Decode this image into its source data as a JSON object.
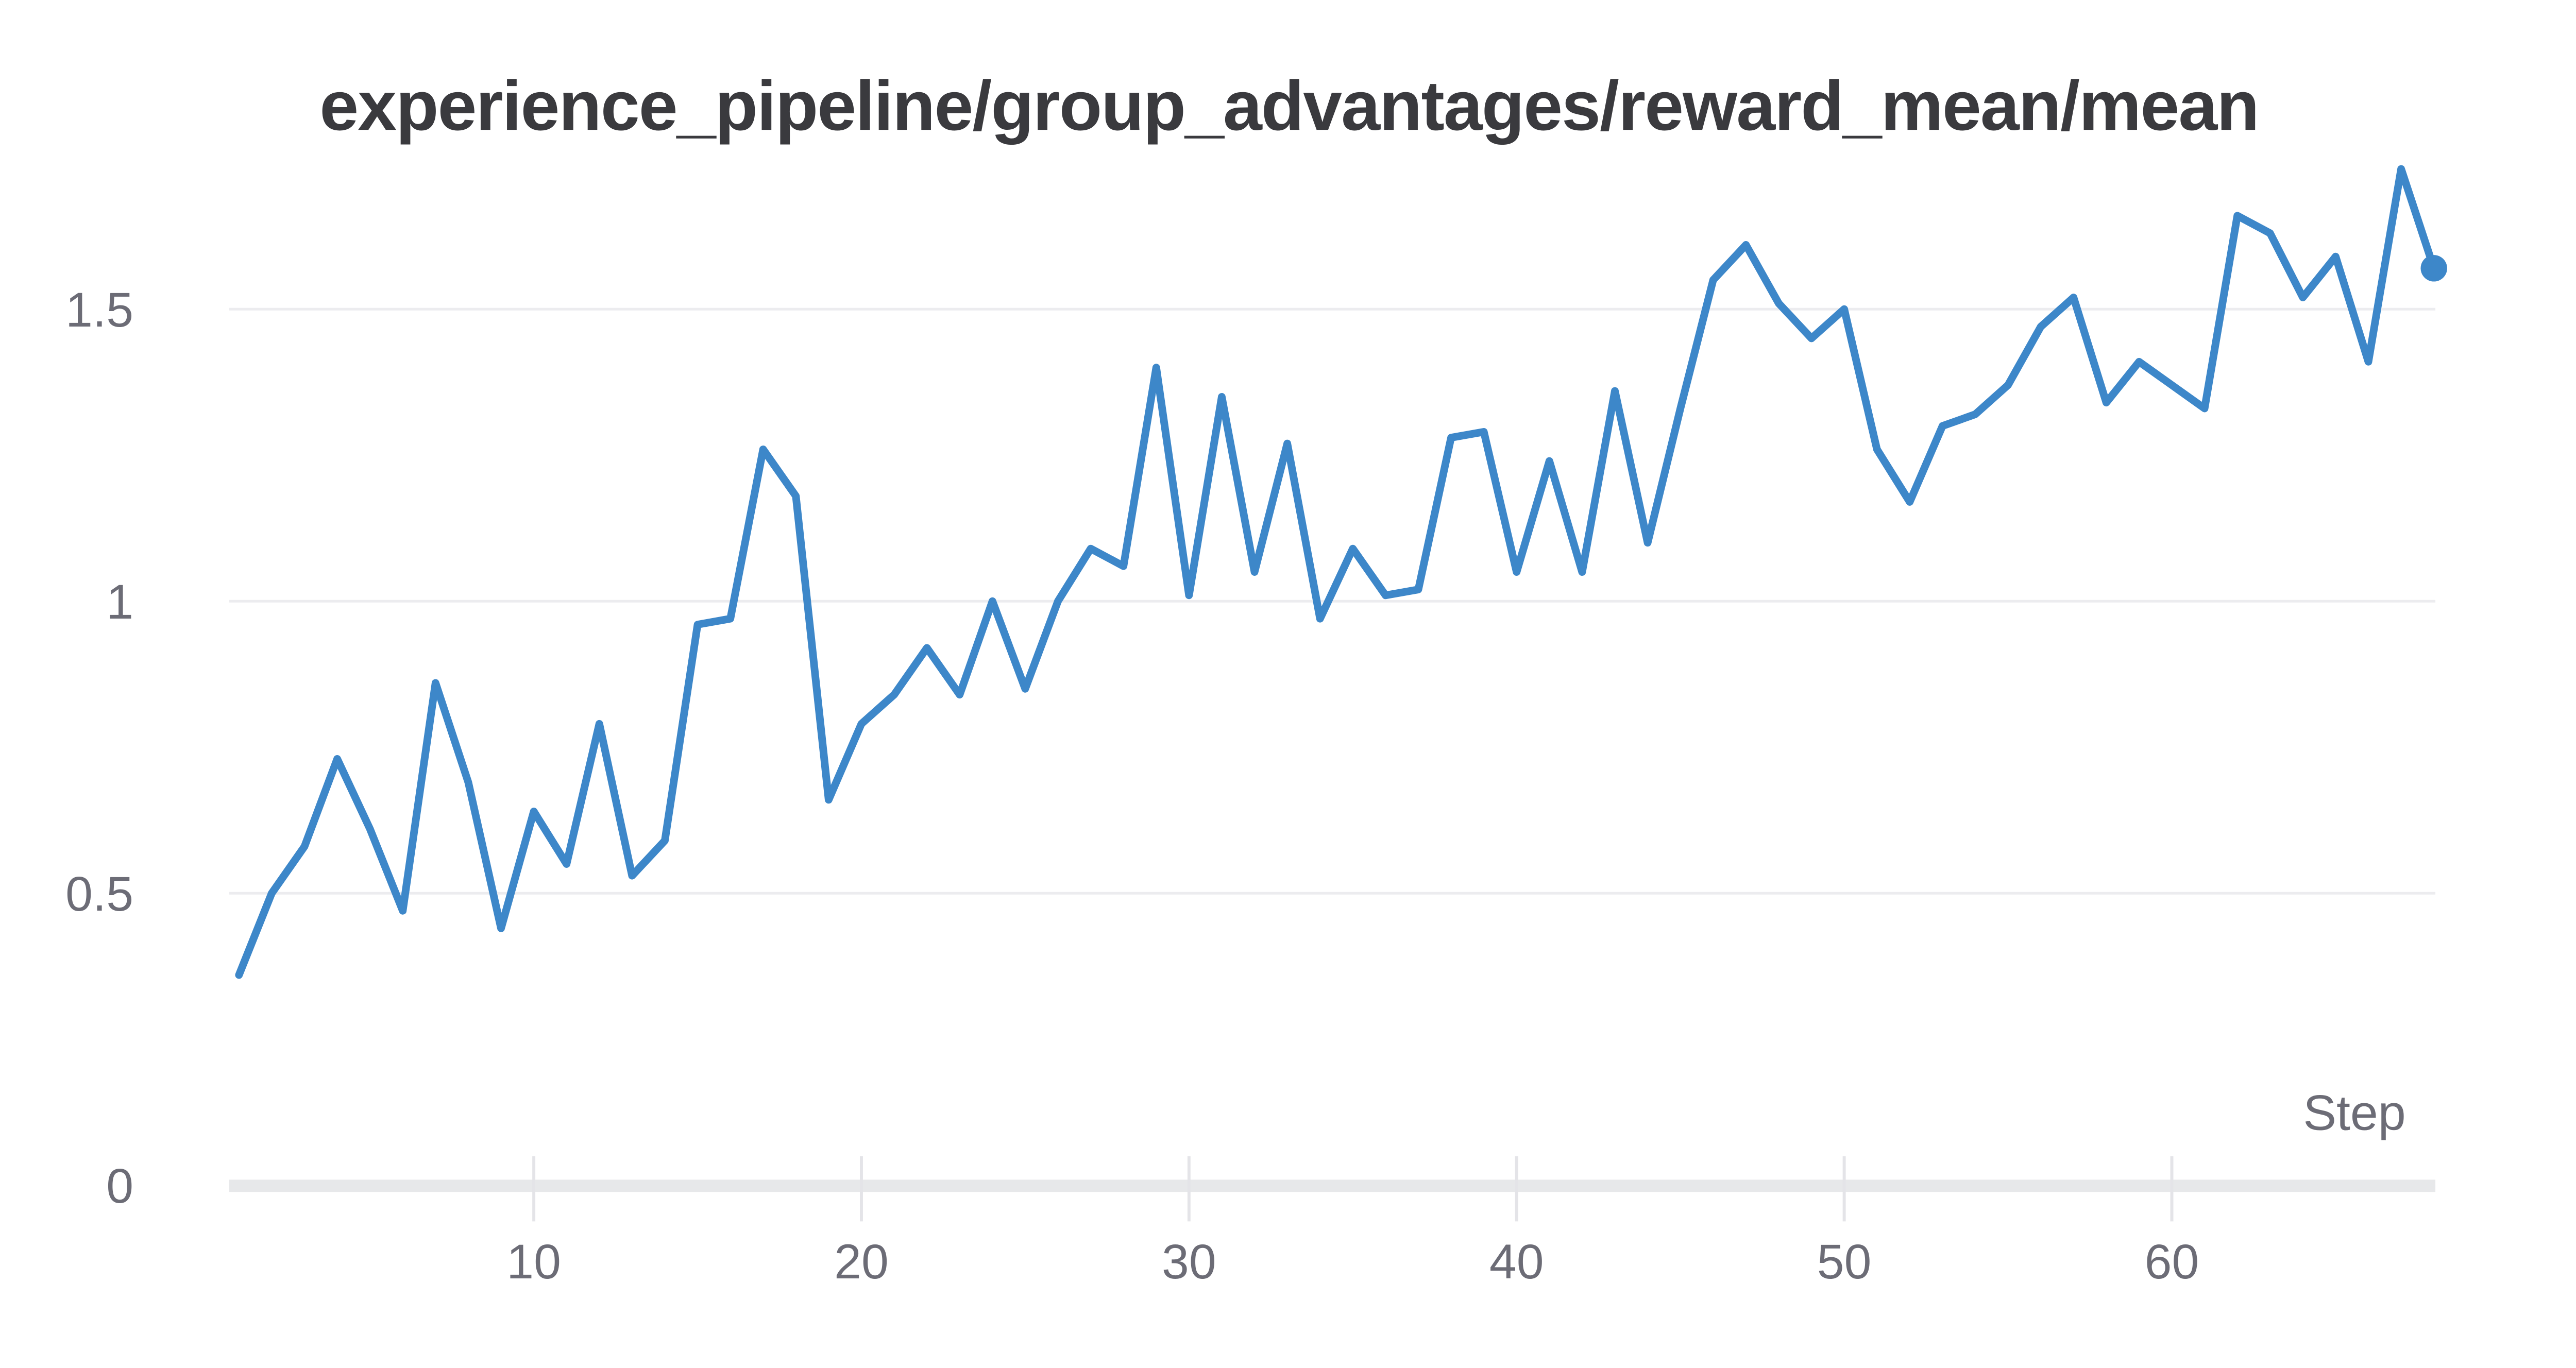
{
  "title": "experience_pipeline/group_advantages/reward_mean/mean",
  "chart_data": {
    "type": "line",
    "title": "experience_pipeline/group_advantages/reward_mean/mean",
    "xlabel": "Step",
    "ylabel": "",
    "xlim": [
      1,
      68
    ],
    "ylim": [
      0,
      1.8
    ],
    "xticks": [
      10,
      20,
      30,
      40,
      50,
      60
    ],
    "yticks": [
      0,
      0.5,
      1,
      1.5
    ],
    "grid": true,
    "legend": "none",
    "line_color": "#3d87c9",
    "endpoint_dot": true,
    "x": [
      1,
      2,
      3,
      4,
      5,
      6,
      7,
      8,
      9,
      10,
      11,
      12,
      13,
      14,
      15,
      16,
      17,
      18,
      19,
      20,
      21,
      22,
      23,
      24,
      25,
      26,
      27,
      28,
      29,
      30,
      31,
      32,
      33,
      34,
      35,
      36,
      37,
      38,
      39,
      40,
      41,
      42,
      43,
      44,
      45,
      46,
      47,
      48,
      49,
      50,
      51,
      52,
      53,
      54,
      55,
      56,
      57,
      58,
      59,
      60,
      61,
      62,
      63,
      64,
      65,
      66,
      67,
      68
    ],
    "series": [
      {
        "name": "reward_mean/mean",
        "values": [
          0.36,
          0.5,
          0.58,
          0.73,
          0.61,
          0.47,
          0.86,
          0.69,
          0.44,
          0.64,
          0.55,
          0.79,
          0.53,
          0.59,
          0.96,
          0.97,
          1.26,
          1.18,
          0.66,
          0.79,
          0.84,
          0.92,
          0.84,
          1.0,
          0.85,
          1.0,
          1.09,
          1.06,
          1.4,
          1.01,
          1.35,
          1.05,
          1.27,
          0.97,
          1.09,
          1.01,
          1.02,
          1.28,
          1.29,
          1.05,
          1.24,
          1.05,
          1.36,
          1.1,
          1.33,
          1.55,
          1.61,
          1.51,
          1.45,
          1.5,
          1.26,
          1.17,
          1.3,
          1.32,
          1.37,
          1.47,
          1.52,
          1.34,
          1.41,
          1.37,
          1.33,
          1.66,
          1.63,
          1.52,
          1.59,
          1.41,
          1.74,
          1.57
        ]
      }
    ],
    "colors": {
      "line": "#3d87c9",
      "title_text": "#3a3a3e",
      "tick_text": "#6c6c76",
      "gridline": "#ececef",
      "axis_line": "#e7e8ea",
      "tick_mark": "#e4e4e8",
      "background": "#ffffff"
    }
  }
}
